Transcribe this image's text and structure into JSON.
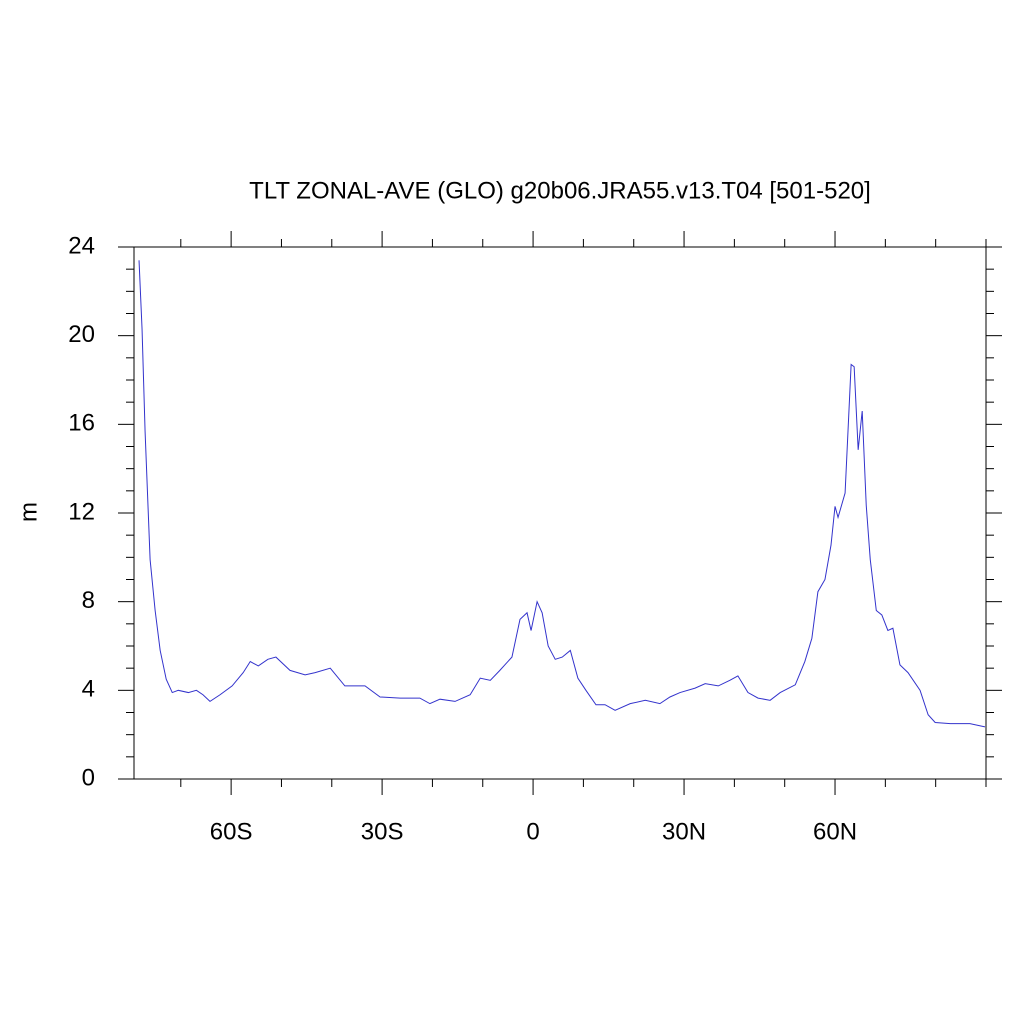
{
  "chart_data": {
    "type": "line",
    "title": "TLT ZONAL-AVE (GLO) g20b06.JRA55.v13.T04 [501-520]",
    "ylabel": "m",
    "x": [
      -78.3,
      -77.7,
      -77.1,
      -76.1,
      -75.1,
      -74.1,
      -72.9,
      -71.7,
      -70.5,
      -68.5,
      -66.9,
      -65.6,
      -64.2,
      -62.2,
      -59.8,
      -57.6,
      -56.2,
      -54.6,
      -52.7,
      -51.1,
      -48.3,
      -45.3,
      -43.3,
      -40.3,
      -37.4,
      -33.4,
      -30.4,
      -26.4,
      -22.5,
      -20.5,
      -18.5,
      -15.5,
      -12.5,
      -10.5,
      -8.5,
      -6.6,
      -4.2,
      -2.6,
      -1.2,
      -0.4,
      0.8,
      1.8,
      3.0,
      4.4,
      5.8,
      7.4,
      8.9,
      10.5,
      12.5,
      14.3,
      16.3,
      19.3,
      22.3,
      25.2,
      27.2,
      29.2,
      32.2,
      34.2,
      36.8,
      39.1,
      40.7,
      42.7,
      44.7,
      47.1,
      49.1,
      52.1,
      54.0,
      55.4,
      56.6,
      58.0,
      59.2,
      60.0,
      60.6,
      62.0,
      63.2,
      63.8,
      64.6,
      65.4,
      66.2,
      67.0,
      68.2,
      69.3,
      70.5,
      71.5,
      72.9,
      74.5,
      76.9,
      78.5,
      79.9,
      82.9,
      86.8,
      89.8
    ],
    "series": [
      {
        "name": "TLT",
        "color": "#3333cc",
        "values": [
          23.4,
          20.3,
          15.7,
          9.9,
          7.6,
          5.8,
          4.5,
          3.9,
          4.0,
          3.9,
          4.0,
          3.8,
          3.5,
          3.8,
          4.2,
          4.8,
          5.3,
          5.1,
          5.4,
          5.5,
          4.9,
          4.7,
          4.8,
          5.0,
          4.2,
          4.2,
          3.7,
          3.65,
          3.65,
          3.4,
          3.6,
          3.5,
          3.8,
          4.55,
          4.45,
          4.9,
          5.5,
          7.2,
          7.5,
          6.7,
          8.0,
          7.5,
          6.0,
          5.4,
          5.5,
          5.8,
          4.55,
          4.0,
          3.35,
          3.35,
          3.1,
          3.4,
          3.55,
          3.4,
          3.7,
          3.9,
          4.1,
          4.3,
          4.2,
          4.45,
          4.65,
          3.9,
          3.65,
          3.55,
          3.9,
          4.25,
          5.3,
          6.35,
          8.45,
          9.0,
          10.55,
          12.3,
          11.8,
          12.9,
          18.7,
          18.6,
          14.85,
          16.6,
          12.35,
          9.9,
          7.6,
          7.4,
          6.7,
          6.8,
          5.15,
          4.8,
          4.0,
          2.9,
          2.55,
          2.5,
          2.5,
          2.35
        ]
      }
    ],
    "xlim": [
      -79.3,
      90
    ],
    "ylim": [
      0,
      24
    ],
    "xticks": [
      {
        "value": -60,
        "label": "60S"
      },
      {
        "value": -30,
        "label": "30S"
      },
      0,
      {
        "value": 30,
        "label": "30N"
      },
      {
        "value": 60,
        "label": "60N"
      }
    ],
    "xminorticks": [
      -70,
      -50,
      -40,
      -20,
      -10,
      10,
      20,
      40,
      50,
      70,
      80,
      90
    ],
    "yticks": [
      0,
      4,
      8,
      12,
      16,
      20,
      24
    ],
    "yminorticks": [
      1,
      2,
      3,
      5,
      6,
      7,
      9,
      10,
      11,
      13,
      14,
      15,
      17,
      18,
      19,
      21,
      22,
      23
    ]
  }
}
